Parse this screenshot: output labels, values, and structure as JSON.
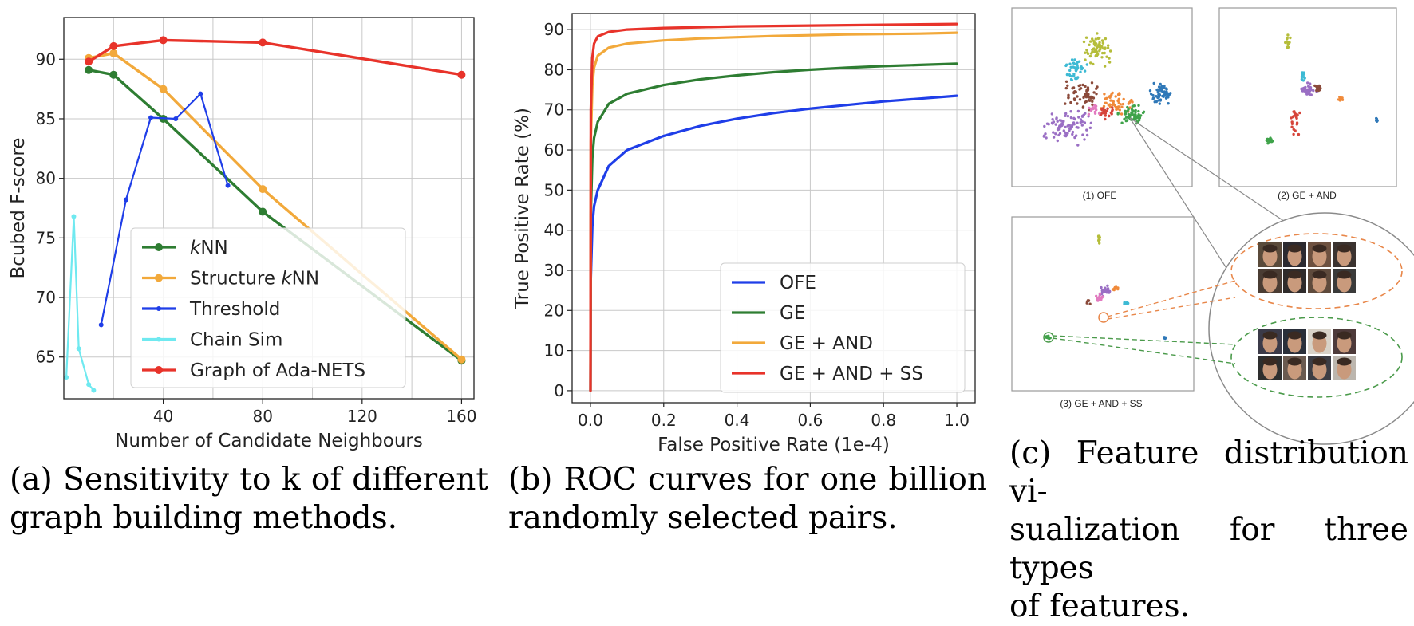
{
  "panel_a": {
    "caption_lines": [
      "(a) Sensitivity to k of different",
      "graph building methods."
    ]
  },
  "panel_b": {
    "caption_lines": [
      "(b) ROC curves for one billion",
      "randomly selected pairs."
    ]
  },
  "panel_c": {
    "caption_lines": [
      "(c) Feature distribution vi-",
      "sualization for three types",
      "of features."
    ],
    "subplots": [
      {
        "label": "(1) OFE"
      },
      {
        "label": "(2) GE + AND"
      },
      {
        "label": "(3) GE + AND + SS"
      }
    ],
    "colors": {
      "cluster_olive": "#b5bd3a",
      "cluster_cyan": "#3dbad4",
      "cluster_brown": "#8b4a3a",
      "cluster_red": "#d6453a",
      "cluster_orange": "#f08a3a",
      "cluster_green": "#3fa34a",
      "cluster_blue": "#2f78b8",
      "cluster_purple": "#9a6fc4",
      "cluster_pink": "#e27bc0",
      "dashed_orange": "#e8874a",
      "dashed_green": "#4a9a4a"
    }
  },
  "chart_data": [
    {
      "type": "line",
      "xlabel": "Number of Candidate Neighbours",
      "ylabel": "Bcubed F-score",
      "xlim": [
        0,
        165
      ],
      "ylim": [
        61.5,
        93.5
      ],
      "xticks": [
        40,
        80,
        120,
        160
      ],
      "yticks": [
        65,
        70,
        75,
        80,
        85,
        90
      ],
      "grid": true,
      "legend_position": "lower-left",
      "series": [
        {
          "name": "kNN",
          "color": "#2e7d32",
          "marker": "large",
          "x": [
            10,
            20,
            40,
            80,
            160
          ],
          "y": [
            89.1,
            88.7,
            85.0,
            77.2,
            64.7
          ]
        },
        {
          "name": "Structure kNN",
          "color": "#f2a93b",
          "marker": "large",
          "x": [
            10,
            20,
            40,
            80,
            160
          ],
          "y": [
            90.1,
            90.5,
            87.5,
            79.1,
            64.8
          ]
        },
        {
          "name": "Threshold",
          "color": "#1f3ee8",
          "marker": "small",
          "x": [
            15,
            25,
            35,
            45,
            55,
            66
          ],
          "y": [
            67.7,
            78.2,
            85.1,
            85.0,
            87.1,
            79.4
          ]
        },
        {
          "name": "Chain Sim",
          "color": "#6fe9f0",
          "marker": "small",
          "x": [
            1,
            4,
            6,
            10,
            12
          ],
          "y": [
            63.3,
            76.8,
            65.7,
            62.7,
            62.2
          ]
        },
        {
          "name": "Graph of Ada-NETS",
          "color": "#e8332a",
          "marker": "large",
          "x": [
            10,
            20,
            40,
            80,
            160
          ],
          "y": [
            89.8,
            91.1,
            91.6,
            91.4,
            88.7
          ]
        }
      ]
    },
    {
      "type": "line",
      "xlabel": "False Positive Rate (1e-4)",
      "ylabel": "True Positive Rate (%)",
      "xlim": [
        -0.05,
        1.05
      ],
      "ylim": [
        -3,
        94
      ],
      "xticks": [
        0.0,
        0.2,
        0.4,
        0.6,
        0.8,
        1.0
      ],
      "yticks": [
        0,
        10,
        20,
        30,
        40,
        50,
        60,
        70,
        80,
        90
      ],
      "grid": true,
      "legend_position": "lower-right",
      "series": [
        {
          "name": "OFE",
          "color": "#1f3ee8",
          "x": [
            0,
            0.001,
            0.005,
            0.01,
            0.02,
            0.05,
            0.1,
            0.2,
            0.3,
            0.4,
            0.5,
            0.6,
            0.7,
            0.8,
            0.9,
            1.0
          ],
          "y": [
            0,
            28,
            41,
            46,
            50,
            56,
            60,
            63.5,
            66,
            67.8,
            69.2,
            70.3,
            71.2,
            72.1,
            72.8,
            73.5
          ]
        },
        {
          "name": "GE",
          "color": "#2e7d32",
          "x": [
            0,
            0.001,
            0.005,
            0.01,
            0.02,
            0.05,
            0.1,
            0.2,
            0.3,
            0.4,
            0.5,
            0.6,
            0.7,
            0.8,
            0.9,
            1.0
          ],
          "y": [
            0,
            44,
            58,
            63,
            67,
            71.5,
            74,
            76.2,
            77.6,
            78.6,
            79.4,
            80.0,
            80.5,
            80.9,
            81.2,
            81.5
          ]
        },
        {
          "name": "GE + AND",
          "color": "#f2a93b",
          "x": [
            0,
            0.001,
            0.005,
            0.01,
            0.02,
            0.05,
            0.1,
            0.2,
            0.3,
            0.4,
            0.5,
            0.6,
            0.7,
            0.8,
            0.9,
            1.0
          ],
          "y": [
            0,
            62,
            76,
            80.5,
            83.5,
            85.5,
            86.5,
            87.3,
            87.8,
            88.1,
            88.4,
            88.6,
            88.8,
            88.9,
            89.0,
            89.2
          ]
        },
        {
          "name": "GE + AND + SS",
          "color": "#e8332a",
          "x": [
            0,
            0.001,
            0.005,
            0.01,
            0.02,
            0.05,
            0.1,
            0.2,
            0.3,
            0.4,
            0.5,
            0.6,
            0.7,
            0.8,
            0.9,
            1.0
          ],
          "y": [
            0,
            70,
            83,
            86.5,
            88.3,
            89.4,
            90.0,
            90.4,
            90.6,
            90.8,
            90.9,
            91.0,
            91.1,
            91.2,
            91.3,
            91.4
          ]
        }
      ]
    }
  ]
}
